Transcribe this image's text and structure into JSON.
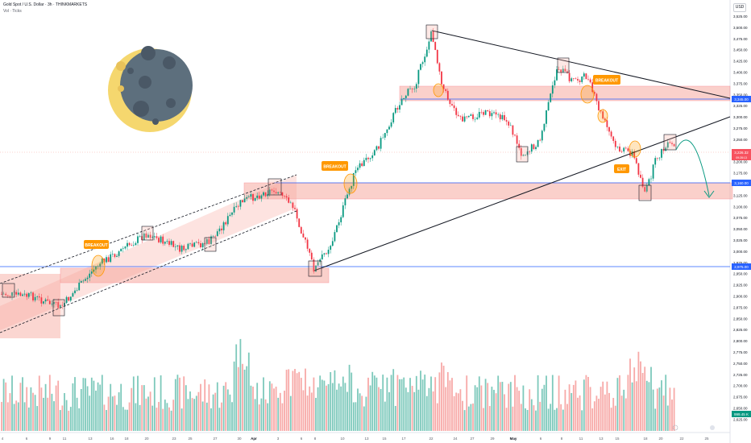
{
  "header": {
    "symbol_line": "Gold Spot / U.S. Dollar · 3h · THINKMARKETS",
    "volume_line": "Vol · Ticks",
    "currency": "USD"
  },
  "chart_data": {
    "type": "candlestick",
    "title": "Gold Spot / U.S. Dollar · 3h · THINKMARKETS",
    "ylabel": "USD",
    "ylim": [
      2610,
      3560
    ],
    "y_ticks": [
      "3,525.00",
      "3,500.00",
      "3,475.00",
      "3,450.00",
      "3,425.00",
      "3,400.00",
      "3,375.00",
      "3,350.00",
      "3,325.00",
      "3,300.00",
      "3,275.00",
      "3,250.00",
      "3,225.00",
      "3,200.00",
      "3,175.00",
      "3,150.00",
      "3,125.00",
      "3,100.00",
      "3,075.00",
      "3,050.00",
      "3,025.00",
      "3,000.00",
      "2,975.00",
      "2,950.00",
      "2,925.00",
      "2,900.00",
      "2,875.00",
      "2,850.00",
      "2,825.00",
      "2,800.00",
      "2,775.00",
      "2,750.00",
      "2,725.00",
      "2,700.00",
      "2,675.00",
      "2,650.00",
      "2,625.00"
    ],
    "x_ticks": [
      "4",
      "6",
      "9",
      "11",
      "13",
      "16",
      "18",
      "20",
      "23",
      "25",
      "27",
      "30",
      "Apr",
      "3",
      "6",
      "8",
      "10",
      "13",
      "15",
      "17",
      "22",
      "24",
      "27",
      "29",
      "May",
      "6",
      "8",
      "11",
      "13",
      "15",
      "18",
      "20",
      "22",
      "25"
    ],
    "price_levels": [
      {
        "value": "3,345.00",
        "color": "#2962ff"
      },
      {
        "value": "3,160.00",
        "color": "#2962ff"
      },
      {
        "value": "2,975.00",
        "color": "#2962ff"
      }
    ],
    "current_price": {
      "value": "3,226.32",
      "sub": "09:28:13",
      "color": "#f7525f"
    },
    "volume_label": {
      "value": "999.45 K",
      "color": "#089981"
    },
    "annotations": [
      "BREAKOUT",
      "BREAKOUT",
      "BREAKOUT",
      "EXIT"
    ],
    "colors": {
      "up": "#089981",
      "down": "#f23645",
      "zone": "#f7a399",
      "level": "#2962ff",
      "label": "#ff9800",
      "arrow": "#089981"
    },
    "grid": false
  },
  "moon": {
    "lit": "#f5d76e",
    "dark": "#5d6f7d",
    "crater": "#4a5866"
  }
}
